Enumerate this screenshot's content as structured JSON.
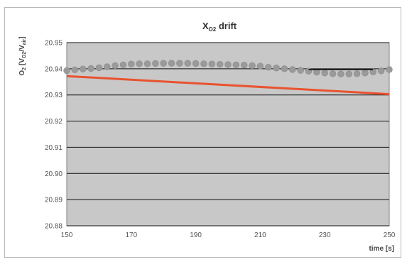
{
  "chart_data": {
    "type": "scatter",
    "title": {
      "main": "X",
      "sub": "O2",
      "tail": " drift"
    },
    "ylabel": {
      "p1": "O",
      "p1sub": "2",
      "p2": " [V",
      "p2sub": "O2",
      "p3": "/V",
      "p3sub": "air",
      "p4": "]"
    },
    "xlabel": "time [s]",
    "xlim": [
      150,
      250
    ],
    "ylim": [
      20.88,
      20.95
    ],
    "xticks": [
      150,
      170,
      190,
      210,
      230,
      250
    ],
    "yticks": [
      20.88,
      20.89,
      20.9,
      20.91,
      20.92,
      20.93,
      20.94,
      20.95
    ],
    "ytick_labels": [
      "20.88",
      "20.89",
      "20.90",
      "20.91",
      "20.92",
      "20.93",
      "20.94",
      "20.95"
    ],
    "grid": true,
    "plot_background": "#c8c8c8",
    "series": [
      {
        "style": "markers",
        "color": "#9a9a9a",
        "points": [
          [
            150,
            20.9393
          ],
          [
            152.5,
            20.9396
          ],
          [
            155,
            20.9399
          ],
          [
            157.5,
            20.9401
          ],
          [
            160,
            20.9404
          ],
          [
            162.5,
            20.9408
          ],
          [
            165,
            20.9412
          ],
          [
            167.5,
            20.9415
          ],
          [
            170,
            20.9418
          ],
          [
            172.5,
            20.9419
          ],
          [
            175,
            20.9419
          ],
          [
            177.5,
            20.942
          ],
          [
            180,
            20.9421
          ],
          [
            182.5,
            20.9421
          ],
          [
            185,
            20.9421
          ],
          [
            187.5,
            20.9421
          ],
          [
            190,
            20.942
          ],
          [
            192.5,
            20.9419
          ],
          [
            195,
            20.9418
          ],
          [
            197.5,
            20.9417
          ],
          [
            200,
            20.9416
          ],
          [
            202.5,
            20.9415
          ],
          [
            205,
            20.9414
          ],
          [
            207.5,
            20.9412
          ],
          [
            210,
            20.941
          ],
          [
            212.5,
            20.9406
          ],
          [
            215,
            20.9403
          ],
          [
            217.5,
            20.94
          ],
          [
            220,
            20.9397
          ],
          [
            222.5,
            20.9394
          ],
          [
            225,
            20.9391
          ],
          [
            227.5,
            20.9387
          ],
          [
            230,
            20.9384
          ],
          [
            232.5,
            20.9381
          ],
          [
            235,
            20.938
          ],
          [
            237.5,
            20.938
          ],
          [
            240,
            20.9381
          ],
          [
            242.5,
            20.9384
          ],
          [
            245,
            20.9388
          ],
          [
            247.5,
            20.9392
          ],
          [
            250,
            20.9397
          ]
        ]
      },
      {
        "style": "line",
        "color": "#e8532f",
        "points": [
          [
            150,
            20.9372
          ],
          [
            250,
            20.9303
          ]
        ]
      }
    ],
    "annotations": [
      {
        "type": "segment",
        "color": "#111111",
        "points": [
          [
            225,
            20.9397
          ],
          [
            245,
            20.9397
          ]
        ]
      }
    ]
  }
}
